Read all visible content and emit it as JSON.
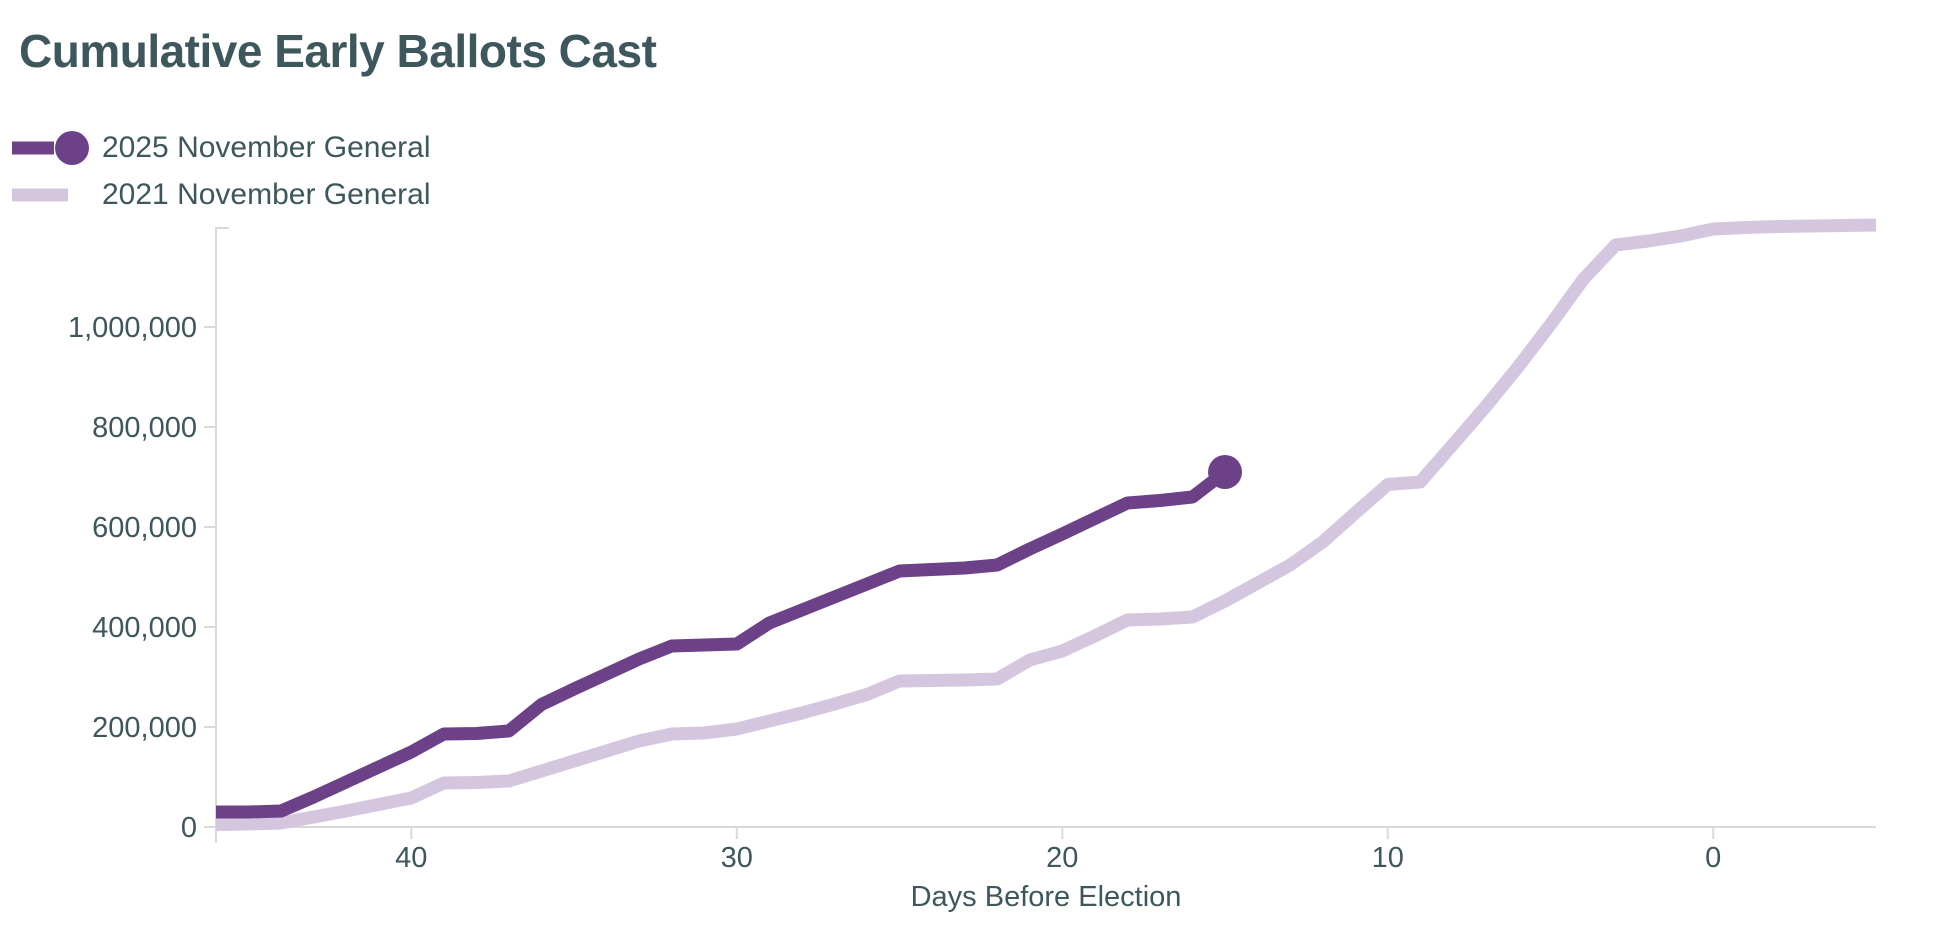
{
  "title": "Cumulative Early Ballots Cast",
  "chart_data": {
    "type": "line",
    "title": "Cumulative Early Ballots Cast",
    "xlabel": "Days Before Election",
    "ylabel": "",
    "x_axis_reversed": true,
    "x_range": [
      46,
      -5
    ],
    "y_range": [
      0,
      1290000
    ],
    "grid": false,
    "legend_position": "top-left",
    "x_ticks": [
      {
        "value": 40,
        "label": "40"
      },
      {
        "value": 30,
        "label": "30"
      },
      {
        "value": 20,
        "label": "20"
      },
      {
        "value": 10,
        "label": "10"
      },
      {
        "value": 0,
        "label": "0"
      }
    ],
    "y_ticks": [
      {
        "value": 0,
        "label": "0"
      },
      {
        "value": 200000,
        "label": "200,000"
      },
      {
        "value": 400000,
        "label": "400,000"
      },
      {
        "value": 600000,
        "label": "600,000"
      },
      {
        "value": 800000,
        "label": "800,000"
      },
      {
        "value": 1000000,
        "label": "1,000,000"
      },
      {
        "value": 1200000,
        "label": ""
      }
    ],
    "colors": {
      "text": "#3d575c",
      "axis": "#d9d9d9",
      "background": "#ffffff",
      "series_2025": "#6d4187",
      "series_2021": "#d5c6e0"
    },
    "series": [
      {
        "name": "2025 November General",
        "color": "#6d4187",
        "line_width": 13,
        "endpoint_marker": true,
        "marker_radius": 17,
        "points": [
          [
            46,
            30000
          ],
          [
            45,
            30000
          ],
          [
            44,
            32000
          ],
          [
            43,
            60000
          ],
          [
            42,
            90000
          ],
          [
            41,
            120000
          ],
          [
            40,
            150000
          ],
          [
            39,
            186000
          ],
          [
            38,
            187000
          ],
          [
            37,
            192000
          ],
          [
            36,
            245000
          ],
          [
            35,
            276000
          ],
          [
            34,
            306000
          ],
          [
            33,
            336000
          ],
          [
            32,
            362000
          ],
          [
            31,
            364000
          ],
          [
            30,
            366000
          ],
          [
            29,
            408000
          ],
          [
            28,
            434000
          ],
          [
            27,
            460000
          ],
          [
            26,
            486000
          ],
          [
            25,
            512000
          ],
          [
            24,
            515000
          ],
          [
            23,
            518000
          ],
          [
            22,
            524000
          ],
          [
            21,
            556000
          ],
          [
            20,
            586000
          ],
          [
            19,
            617000
          ],
          [
            18,
            648000
          ],
          [
            17,
            653000
          ],
          [
            16,
            660000
          ],
          [
            15,
            710000
          ]
        ]
      },
      {
        "name": "2021 November General",
        "color": "#d5c6e0",
        "line_width": 13,
        "endpoint_marker": false,
        "marker_radius": 0,
        "points": [
          [
            46,
            5000
          ],
          [
            45,
            6000
          ],
          [
            44,
            8000
          ],
          [
            43,
            20000
          ],
          [
            42,
            32000
          ],
          [
            41,
            45000
          ],
          [
            40,
            58000
          ],
          [
            39,
            88000
          ],
          [
            38,
            89000
          ],
          [
            37,
            92000
          ],
          [
            36,
            112000
          ],
          [
            35,
            132000
          ],
          [
            34,
            152000
          ],
          [
            33,
            172000
          ],
          [
            32,
            186000
          ],
          [
            31,
            188000
          ],
          [
            30,
            196000
          ],
          [
            29,
            212000
          ],
          [
            28,
            228000
          ],
          [
            27,
            246000
          ],
          [
            26,
            265000
          ],
          [
            25,
            292000
          ],
          [
            24,
            293000
          ],
          [
            23,
            294000
          ],
          [
            22,
            296000
          ],
          [
            21,
            334000
          ],
          [
            20,
            352000
          ],
          [
            19,
            382000
          ],
          [
            18,
            414000
          ],
          [
            17,
            416000
          ],
          [
            16,
            420000
          ],
          [
            15,
            452000
          ],
          [
            14,
            488000
          ],
          [
            13,
            524000
          ],
          [
            12,
            570000
          ],
          [
            11,
            628000
          ],
          [
            10,
            685000
          ],
          [
            9,
            690000
          ],
          [
            8,
            765000
          ],
          [
            7,
            840000
          ],
          [
            6,
            920000
          ],
          [
            5,
            1005000
          ],
          [
            4,
            1095000
          ],
          [
            3,
            1164000
          ],
          [
            2,
            1172000
          ],
          [
            1,
            1182000
          ],
          [
            0,
            1196000
          ],
          [
            -1,
            1199000
          ],
          [
            -2,
            1201000
          ],
          [
            -3,
            1202000
          ],
          [
            -4,
            1203000
          ],
          [
            -5,
            1204000
          ]
        ]
      }
    ]
  }
}
